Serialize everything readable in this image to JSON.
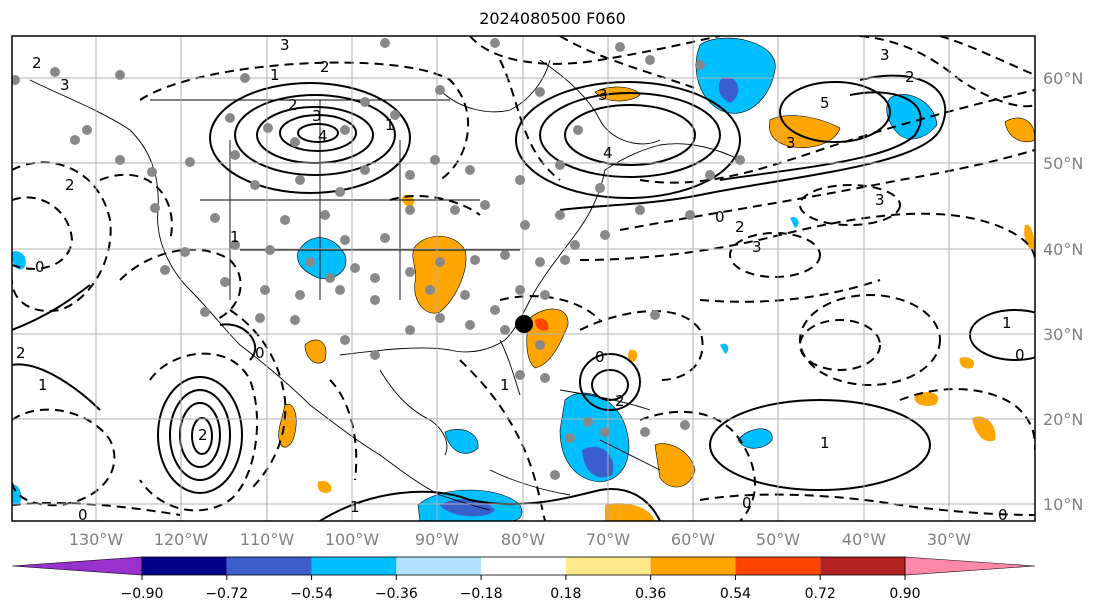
{
  "title": "2024080500 F060",
  "longitude_labels": [
    "130°W",
    "120°W",
    "110°W",
    "100°W",
    "90°W",
    "80°W",
    "70°W",
    "60°W",
    "50°W",
    "40°W",
    "30°W"
  ],
  "latitude_labels": [
    "60°N",
    "50°N",
    "40°N",
    "30°N",
    "20°N",
    "10°N"
  ],
  "colorbar": {
    "ticks": [
      "−0.90",
      "−0.72",
      "−0.54",
      "−0.36",
      "−0.18",
      "0.18",
      "0.36",
      "0.54",
      "0.72",
      "0.90"
    ],
    "colors": [
      "#9932cc",
      "#00008b",
      "#3a5fcd",
      "#00bfff",
      "#b0e2ff",
      "#ffffff",
      "#ffe88a",
      "#ffa500",
      "#ff4500",
      "#b22222",
      "#ff88aa"
    ]
  },
  "contour_labels": [
    "3",
    "2",
    "1",
    "2",
    "3",
    "4",
    "3",
    "2",
    "1",
    "4",
    "3",
    "5",
    "3",
    "2",
    "0",
    "3",
    "2",
    "3",
    "3",
    "2",
    "1",
    "0",
    "1",
    "2",
    "0",
    "2",
    "1",
    "0",
    "1",
    "1",
    "0",
    "0",
    "1",
    "2",
    "0",
    "0"
  ],
  "colors": {
    "frame": "#000000",
    "grid": "#b0b0b0",
    "stations": "#888888",
    "marker": "#000000"
  }
}
